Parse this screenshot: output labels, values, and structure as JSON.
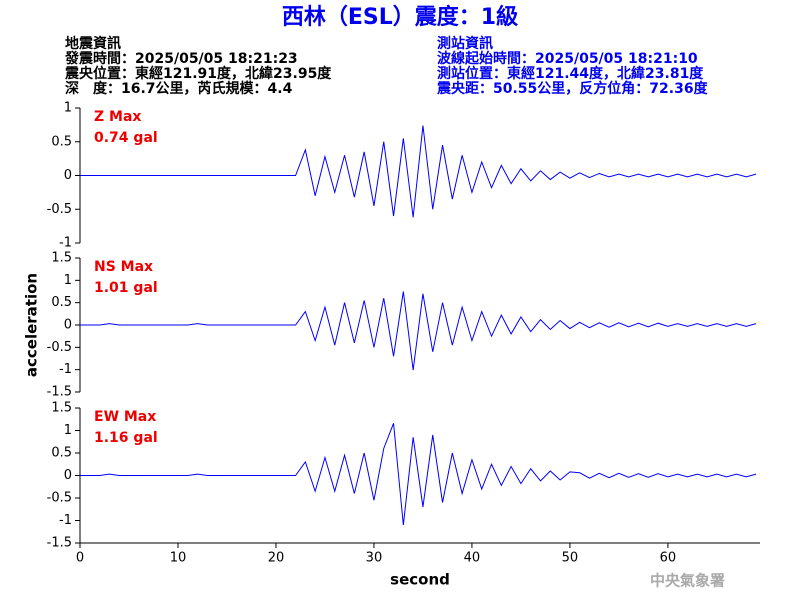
{
  "header": {
    "title": "西林（ESL）震度：1級",
    "left": [
      "地震資訊",
      "發震時間：2025/05/05 18:21:23",
      "震央位置：東經121.91度，北緯23.95度",
      "深　度：16.7公里，芮氏規模：4.4"
    ],
    "right": [
      "測站資訊",
      "波線起始時間：2025/05/05 18:21:10",
      "測站位置：東經121.44度，北緯23.81度",
      "震央距：50.55公里，反方位角：72.36度"
    ]
  },
  "watermark": "中央氣象署",
  "chart_data": [
    {
      "type": "line",
      "title": "Z Max",
      "subtitle": "0.74 gal",
      "x": [
        0,
        1,
        2,
        3,
        4,
        5,
        6,
        7,
        8,
        9,
        10,
        11,
        12,
        13,
        14,
        15,
        16,
        17,
        18,
        19,
        20,
        21,
        22,
        23,
        24,
        25,
        26,
        27,
        28,
        29,
        30,
        31,
        32,
        33,
        34,
        35,
        36,
        37,
        38,
        39,
        40,
        41,
        42,
        43,
        44,
        45,
        46,
        47,
        48,
        49,
        50,
        51,
        52,
        53,
        54,
        55,
        56,
        57,
        58,
        59,
        60,
        61,
        62,
        63,
        64,
        65,
        66,
        67,
        68,
        69
      ],
      "series": [
        {
          "color": "#0000ff",
          "values": [
            0,
            0,
            0,
            0,
            0,
            0,
            0,
            0,
            0,
            0,
            0,
            0,
            0,
            0,
            0,
            0,
            0,
            0,
            0,
            0,
            0,
            0,
            0,
            0.38,
            -0.3,
            0.28,
            -0.25,
            0.3,
            -0.32,
            0.35,
            -0.45,
            0.5,
            -0.6,
            0.55,
            -0.62,
            0.74,
            -0.5,
            0.45,
            -0.35,
            0.3,
            -0.25,
            0.2,
            -0.18,
            0.15,
            -0.12,
            0.1,
            -0.08,
            0.07,
            -0.06,
            0.05,
            -0.04,
            0.04,
            -0.03,
            0.03,
            -0.02,
            0.02,
            -0.02,
            0.02,
            -0.02,
            0.02,
            -0.02,
            0.02,
            -0.02,
            0.02,
            -0.02,
            0.02,
            -0.02,
            0.02,
            -0.02,
            0.02
          ]
        }
      ],
      "xlim": [
        0,
        69.4
      ],
      "ylim": [
        -1,
        1
      ],
      "yticks": [
        1,
        0.5,
        0,
        -0.5,
        -1
      ]
    },
    {
      "type": "line",
      "title": "NS Max",
      "subtitle": "1.01 gal",
      "ylabel": "acceleration",
      "x": [
        0,
        1,
        2,
        3,
        4,
        5,
        6,
        7,
        8,
        9,
        10,
        11,
        12,
        13,
        14,
        15,
        16,
        17,
        18,
        19,
        20,
        21,
        22,
        23,
        24,
        25,
        26,
        27,
        28,
        29,
        30,
        31,
        32,
        33,
        34,
        35,
        36,
        37,
        38,
        39,
        40,
        41,
        42,
        43,
        44,
        45,
        46,
        47,
        48,
        49,
        50,
        51,
        52,
        53,
        54,
        55,
        56,
        57,
        58,
        59,
        60,
        61,
        62,
        63,
        64,
        65,
        66,
        67,
        68,
        69
      ],
      "series": [
        {
          "color": "#0000ff",
          "values": [
            0,
            0,
            0,
            0.03,
            0,
            0,
            0,
            0,
            0,
            0,
            0,
            0,
            0.03,
            0,
            0,
            0,
            0,
            0,
            0,
            0,
            0,
            0,
            0,
            0.3,
            -0.35,
            0.4,
            -0.45,
            0.5,
            -0.4,
            0.55,
            -0.5,
            0.6,
            -0.7,
            0.75,
            -1.01,
            0.7,
            -0.6,
            0.5,
            -0.45,
            0.4,
            -0.35,
            0.3,
            -0.25,
            0.22,
            -0.2,
            0.18,
            -0.15,
            0.12,
            -0.1,
            0.1,
            -0.08,
            0.06,
            -0.06,
            0.05,
            -0.05,
            0.05,
            -0.04,
            0.04,
            -0.04,
            0.04,
            -0.03,
            0.03,
            -0.03,
            0.03,
            -0.03,
            0.03,
            -0.03,
            0.03,
            -0.03,
            0.03
          ]
        }
      ],
      "xlim": [
        0,
        69.4
      ],
      "ylim": [
        -1.5,
        1.5
      ],
      "yticks": [
        1.5,
        1,
        0.5,
        0,
        -0.5,
        -1,
        -1.5
      ]
    },
    {
      "type": "line",
      "title": "EW Max",
      "subtitle": "1.16 gal",
      "xlabel": "second",
      "x": [
        0,
        1,
        2,
        3,
        4,
        5,
        6,
        7,
        8,
        9,
        10,
        11,
        12,
        13,
        14,
        15,
        16,
        17,
        18,
        19,
        20,
        21,
        22,
        23,
        24,
        25,
        26,
        27,
        28,
        29,
        30,
        31,
        32,
        33,
        34,
        35,
        36,
        37,
        38,
        39,
        40,
        41,
        42,
        43,
        44,
        45,
        46,
        47,
        48,
        49,
        50,
        51,
        52,
        53,
        54,
        55,
        56,
        57,
        58,
        59,
        60,
        61,
        62,
        63,
        64,
        65,
        66,
        67,
        68,
        69
      ],
      "series": [
        {
          "color": "#0000ff",
          "values": [
            0,
            0,
            0,
            0.03,
            0,
            0,
            0,
            0,
            0,
            0,
            0,
            0,
            0.03,
            0,
            0,
            0,
            0,
            0,
            0,
            0,
            0,
            0,
            0,
            0.3,
            -0.35,
            0.4,
            -0.35,
            0.45,
            -0.4,
            0.5,
            -0.55,
            0.6,
            1.16,
            -1.1,
            0.85,
            -0.7,
            0.9,
            -0.6,
            0.5,
            -0.4,
            0.35,
            -0.3,
            0.25,
            -0.22,
            0.2,
            -0.18,
            0.15,
            -0.12,
            0.1,
            -0.1,
            0.08,
            0.06,
            -0.06,
            0.05,
            -0.05,
            0.05,
            -0.04,
            0.04,
            -0.04,
            0.04,
            -0.03,
            0.03,
            -0.03,
            0.03,
            -0.03,
            0.03,
            -0.03,
            0.03,
            -0.03,
            0.03
          ]
        }
      ],
      "xlim": [
        0,
        69.4
      ],
      "ylim": [
        -1.5,
        1.5
      ],
      "yticks": [
        1.5,
        1,
        0.5,
        0,
        -0.5,
        -1,
        -1.5
      ],
      "xticks": [
        0,
        10,
        20,
        30,
        40,
        50,
        60
      ]
    }
  ]
}
